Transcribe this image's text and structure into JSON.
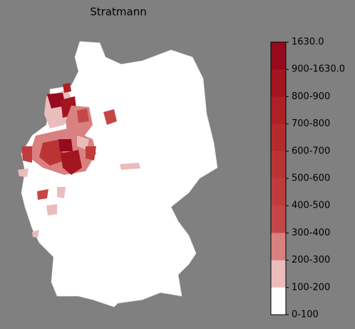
{
  "title": "Stratmann",
  "legend": {
    "labels": [
      "1630.0",
      "900-1630.0",
      "800-900",
      "700-800",
      "600-700",
      "500-600",
      "400-500",
      "300-400",
      "200-300",
      "100-200",
      "0-100"
    ],
    "colors": [
      "#960a1e",
      "#a3151f",
      "#ad2126",
      "#b52b2c",
      "#bb3434",
      "#c03c3c",
      "#c54646",
      "#d98080",
      "#ebbcbc",
      "#ffffff"
    ]
  }
}
